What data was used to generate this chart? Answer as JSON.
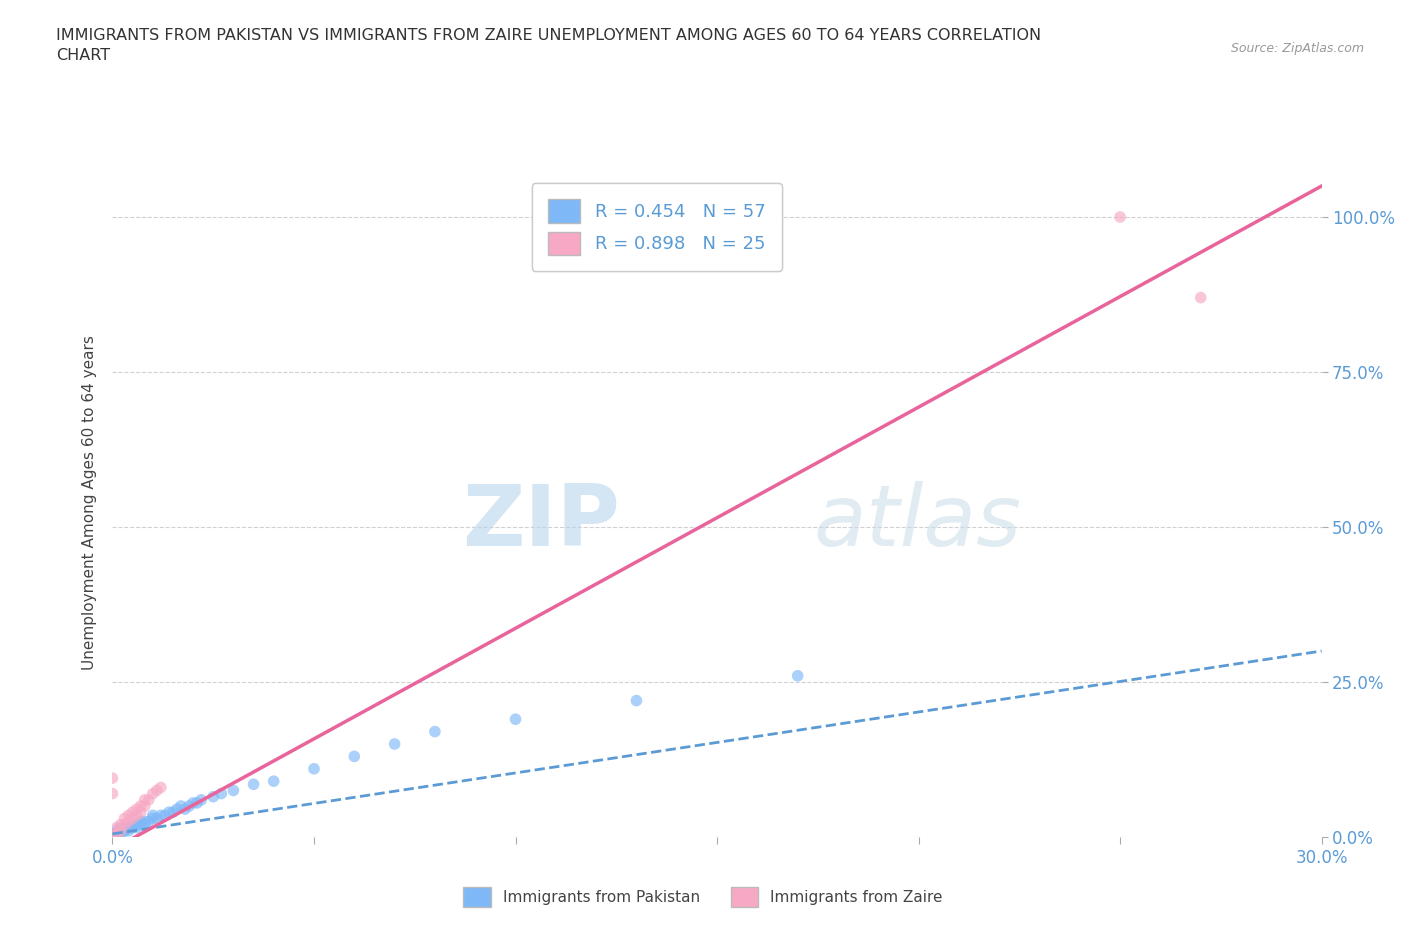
{
  "title": "IMMIGRANTS FROM PAKISTAN VS IMMIGRANTS FROM ZAIRE UNEMPLOYMENT AMONG AGES 60 TO 64 YEARS CORRELATION\nCHART",
  "source": "Source: ZipAtlas.com",
  "ylabel": "Unemployment Among Ages 60 to 64 years",
  "xlim": [
    0.0,
    0.3
  ],
  "ylim": [
    0.0,
    1.08
  ],
  "pakistan_color": "#7eb8f7",
  "zaire_color": "#f7a8c4",
  "pakistan_line_color": "#5b9bd5",
  "zaire_line_color": "#e8649a",
  "pakistan_R": 0.454,
  "pakistan_N": 57,
  "zaire_R": 0.898,
  "zaire_N": 25,
  "legend_label_pakistan": "Immigrants from Pakistan",
  "legend_label_zaire": "Immigrants from Zaire",
  "watermark_zip": "ZIP",
  "watermark_atlas": "atlas",
  "background_color": "#ffffff",
  "grid_color": "#cccccc",
  "pakistan_scatter_x": [
    0.0,
    0.0,
    0.0,
    0.0,
    0.0,
    0.0,
    0.0,
    0.0,
    0.0,
    0.0,
    0.001,
    0.001,
    0.001,
    0.002,
    0.002,
    0.002,
    0.002,
    0.003,
    0.003,
    0.003,
    0.004,
    0.004,
    0.005,
    0.005,
    0.006,
    0.006,
    0.007,
    0.007,
    0.008,
    0.008,
    0.009,
    0.01,
    0.01,
    0.011,
    0.012,
    0.013,
    0.014,
    0.015,
    0.016,
    0.017,
    0.018,
    0.019,
    0.02,
    0.021,
    0.022,
    0.025,
    0.027,
    0.03,
    0.035,
    0.04,
    0.05,
    0.06,
    0.07,
    0.08,
    0.1,
    0.13,
    0.17
  ],
  "pakistan_scatter_y": [
    0.0,
    0.0,
    0.0,
    0.0,
    0.0,
    0.0,
    0.0,
    0.0,
    0.005,
    0.005,
    0.005,
    0.005,
    0.01,
    0.005,
    0.01,
    0.01,
    0.015,
    0.01,
    0.01,
    0.015,
    0.01,
    0.015,
    0.015,
    0.02,
    0.015,
    0.02,
    0.02,
    0.025,
    0.02,
    0.025,
    0.025,
    0.03,
    0.035,
    0.03,
    0.035,
    0.035,
    0.04,
    0.04,
    0.045,
    0.05,
    0.045,
    0.05,
    0.055,
    0.055,
    0.06,
    0.065,
    0.07,
    0.075,
    0.085,
    0.09,
    0.11,
    0.13,
    0.15,
    0.17,
    0.19,
    0.22,
    0.26
  ],
  "zaire_scatter_x": [
    0.0,
    0.0,
    0.0,
    0.001,
    0.001,
    0.002,
    0.002,
    0.003,
    0.003,
    0.004,
    0.004,
    0.005,
    0.005,
    0.006,
    0.006,
    0.007,
    0.007,
    0.008,
    0.008,
    0.009,
    0.01,
    0.011,
    0.012,
    0.25,
    0.27
  ],
  "zaire_scatter_y": [
    0.0,
    0.07,
    0.095,
    0.005,
    0.015,
    0.01,
    0.02,
    0.02,
    0.03,
    0.025,
    0.035,
    0.03,
    0.04,
    0.035,
    0.045,
    0.04,
    0.05,
    0.05,
    0.06,
    0.06,
    0.07,
    0.075,
    0.08,
    1.0,
    0.87
  ],
  "pak_line_x0": 0.0,
  "pak_line_x1": 0.3,
  "pak_line_y0": 0.005,
  "pak_line_y1": 0.3,
  "zaire_line_x0": 0.0,
  "zaire_line_x1": 0.3,
  "zaire_line_y0": -0.02,
  "zaire_line_y1": 1.05
}
